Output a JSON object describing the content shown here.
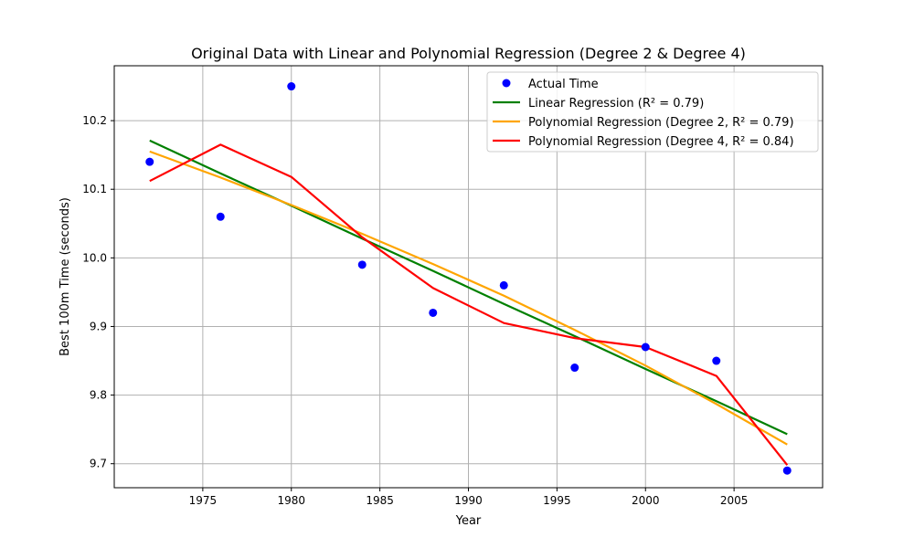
{
  "chart_data": {
    "type": "scatter",
    "title": "Original Data with Linear and Polynomial Regression (Degree 2 & Degree 4)",
    "xlabel": "Year",
    "ylabel": "Best 100m Time (seconds)",
    "xlim": [
      1970,
      2010
    ],
    "ylim": [
      9.665,
      10.28
    ],
    "x_ticks": [
      1975,
      1980,
      1985,
      1990,
      1995,
      2000,
      2005
    ],
    "y_ticks": [
      9.7,
      9.8,
      9.9,
      10.0,
      10.1,
      10.2
    ],
    "y_tick_labels": [
      "9.7",
      "9.8",
      "9.9",
      "10.0",
      "10.1",
      "10.2"
    ],
    "grid": true,
    "legend_position": "top-right",
    "x": [
      1972,
      1976,
      1980,
      1984,
      1988,
      1992,
      1996,
      2000,
      2004,
      2008
    ],
    "series": [
      {
        "name": "Actual Time",
        "kind": "scatter",
        "color": "#0000ff",
        "values": [
          10.14,
          10.06,
          10.25,
          9.99,
          9.92,
          9.96,
          9.84,
          9.87,
          9.85,
          9.69
        ]
      },
      {
        "name": "Linear Regression (R² = 0.79)",
        "kind": "line",
        "color": "#008000",
        "values": [
          10.171,
          10.123,
          10.076,
          10.028,
          9.981,
          9.933,
          9.886,
          9.838,
          9.791,
          9.743
        ]
      },
      {
        "name": "Polynomial Regression (Degree 2, R² = 0.79)",
        "kind": "line",
        "color": "#ffa500",
        "values": [
          10.155,
          10.117,
          10.077,
          10.035,
          9.991,
          9.945,
          9.895,
          9.843,
          9.787,
          9.728
        ]
      },
      {
        "name": "Polynomial Regression (Degree 4, R² = 0.84)",
        "kind": "line",
        "color": "#ff0000",
        "values": [
          10.112,
          10.165,
          10.118,
          10.03,
          9.956,
          9.905,
          9.883,
          9.87,
          9.828,
          9.698
        ]
      }
    ]
  }
}
